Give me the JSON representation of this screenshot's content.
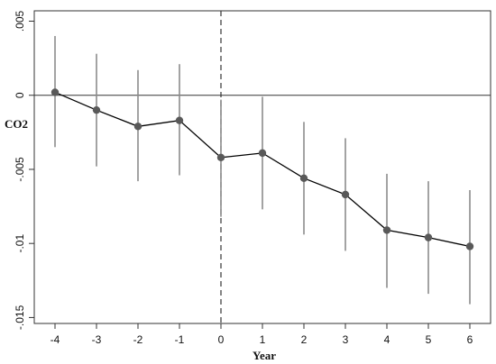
{
  "chart_data": {
    "type": "line",
    "title": "",
    "xlabel": "Year",
    "ylabel": "CO2",
    "xlim": [
      -4.5,
      6.5
    ],
    "ylim": [
      -0.0154,
      0.0057
    ],
    "x_ticks": [
      -4,
      -3,
      -2,
      -1,
      0,
      1,
      2,
      3,
      4,
      5,
      6
    ],
    "x_tick_labels": [
      "-4",
      "-3",
      "-2",
      "-1",
      "0",
      "1",
      "2",
      "3",
      "4",
      "5",
      "6"
    ],
    "y_ticks": [
      0.005,
      0,
      -0.005,
      -0.01,
      -0.015
    ],
    "y_tick_labels": [
      ".005",
      "0",
      "-.005",
      "-.01",
      "-.015"
    ],
    "reference_lines": {
      "horizontal": {
        "y": 0,
        "style": "solid"
      },
      "vertical": {
        "x": 0,
        "style": "dashed"
      }
    },
    "grid": false,
    "legend": "none",
    "series": [
      {
        "x": [
          -4,
          -3,
          -2,
          -1,
          0,
          1,
          2,
          3,
          4,
          5,
          6
        ],
        "y": [
          0.0002,
          -0.001,
          -0.0021,
          -0.0017,
          -0.0042,
          -0.0039,
          -0.0056,
          -0.0067,
          -0.0091,
          -0.0096,
          -0.0102
        ],
        "ci_low": [
          -0.0035,
          -0.0048,
          -0.0058,
          -0.0054,
          -0.0082,
          -0.0077,
          -0.0094,
          -0.0105,
          -0.013,
          -0.0134,
          -0.0141
        ],
        "ci_high": [
          0.004,
          0.0028,
          0.0017,
          0.0021,
          -0.0003,
          -0.0001,
          -0.0018,
          -0.0029,
          -0.0053,
          -0.0058,
          -0.0064
        ]
      }
    ],
    "colors": {
      "line": "#000000",
      "marker": "#595959",
      "ci": "#8c8c8c",
      "axis": "#333333"
    }
  }
}
